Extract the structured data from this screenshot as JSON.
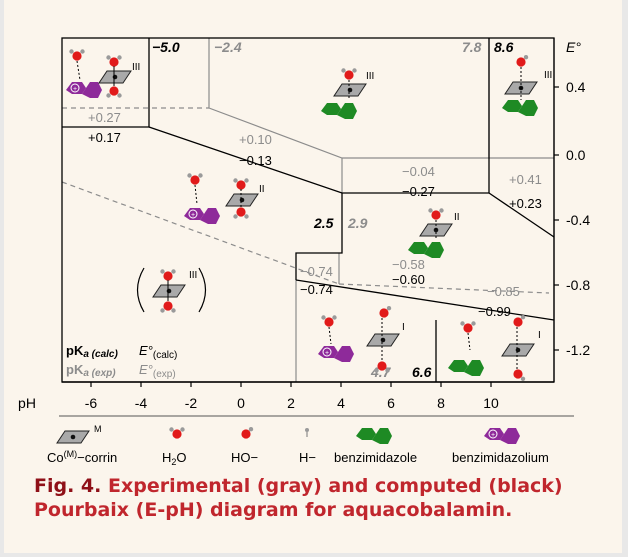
{
  "chart_data": {
    "type": "pourbaix",
    "x_axis": {
      "label": "pH",
      "ticks": [
        "-6",
        "-4",
        "-2",
        "0",
        "2",
        "4",
        "6",
        "8",
        "10"
      ]
    },
    "y_axis": {
      "label": "E°",
      "ticks": [
        "0.4",
        "0.0",
        "-0.4",
        "-0.8",
        "-1.2"
      ]
    },
    "pka_labels": [
      {
        "text": "−5.0",
        "kind": "calc"
      },
      {
        "text": "−2.4",
        "kind": "exp"
      },
      {
        "text": "7.8",
        "kind": "exp"
      },
      {
        "text": "8.6",
        "kind": "calc"
      },
      {
        "text": "2.5",
        "kind": "calc"
      },
      {
        "text": "2.9",
        "kind": "exp"
      },
      {
        "text": "4.7",
        "kind": "exp"
      },
      {
        "text": "6.6",
        "kind": "calc"
      }
    ],
    "potential_labels": [
      {
        "text": "+0.27",
        "kind": "exp"
      },
      {
        "text": "+0.17",
        "kind": "calc"
      },
      {
        "text": "+0.10",
        "kind": "exp"
      },
      {
        "text": "−0.13",
        "kind": "calc"
      },
      {
        "text": "−0.04",
        "kind": "exp"
      },
      {
        "text": "−0.27",
        "kind": "calc"
      },
      {
        "text": "+0.41",
        "kind": "exp"
      },
      {
        "text": "+0.23",
        "kind": "calc"
      },
      {
        "text": "−0.74",
        "kind": "exp"
      },
      {
        "text": "−0.74",
        "kind": "calc"
      },
      {
        "text": "−0.58",
        "kind": "exp"
      },
      {
        "text": "−0.60",
        "kind": "calc"
      },
      {
        "text": "−0.85",
        "kind": "exp"
      },
      {
        "text": "−0.99",
        "kind": "calc"
      }
    ],
    "oxidation_states": [
      "III",
      "III",
      "III",
      "II",
      "II",
      "III",
      "I",
      "I"
    ],
    "key": {
      "pka_calc": "pK",
      "pka_calc_sub": "a (calc)",
      "pka_exp": "pK",
      "pka_exp_sub": "a (exp)",
      "e_calc": "E°",
      "e_calc_sub": "(calc)",
      "e_exp": "E°",
      "e_exp_sub": "(exp)"
    }
  },
  "legend": {
    "corrin": "Co(M)−corrin",
    "corrin_sup": "(M)",
    "corrin_m": "M",
    "water": "H2O",
    "hydroxide": "HO−",
    "hydride": "H−",
    "benzimidazole": "benzimidazole",
    "benzimidazolium": "benzimidazolium"
  },
  "caption": {
    "label": "Fig. 4.",
    "text": " Experimental (gray) and computed (black) Pourbaix (E-pH) diagram for aquacobalamin."
  },
  "colors": {
    "calc": "#000000",
    "exp": "#8c8c8c",
    "benzimidazole": "#1e8a24",
    "benzimidazolium": "#8e2a9a",
    "oxygen": "#e11a1a",
    "hydrogen": "#9a9a9a",
    "corrin": "#8e8e8e",
    "caption": "#c0262d"
  }
}
